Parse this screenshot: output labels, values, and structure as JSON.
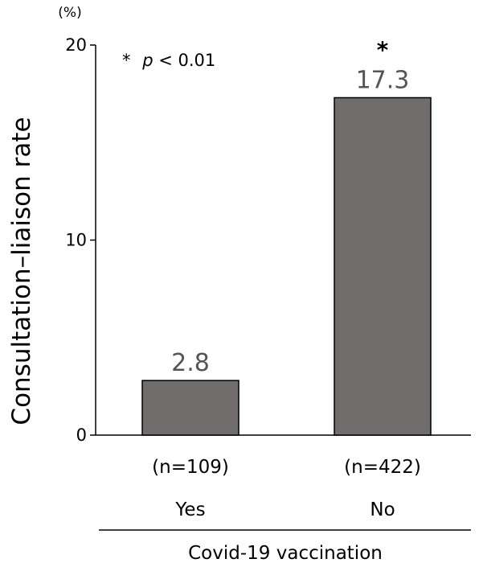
{
  "chart_data": {
    "type": "bar",
    "categories": [
      "Yes",
      "No"
    ],
    "values": [
      2.8,
      17.3
    ],
    "value_labels": [
      "2.8",
      "17.3"
    ],
    "sample_sizes": [
      "(n=109)",
      "(n=422)"
    ],
    "significance_markers": [
      "",
      "*"
    ],
    "ylabel": "Consultation–liaison rate",
    "yunit": "(%)",
    "xlabel": "Covid-19 vaccination",
    "ylim": [
      0,
      20
    ],
    "yticks": [
      0,
      10,
      20
    ],
    "ytick_labels": [
      "0",
      "10",
      "20"
    ],
    "annotation": {
      "star": "*",
      "p_symbol": "p",
      "comparison": " < 0.01"
    },
    "grid": false,
    "legend": "none",
    "colors": {
      "bar_fill": "#706d6c",
      "bar_stroke": "#000000",
      "value_label": "#555555"
    }
  }
}
